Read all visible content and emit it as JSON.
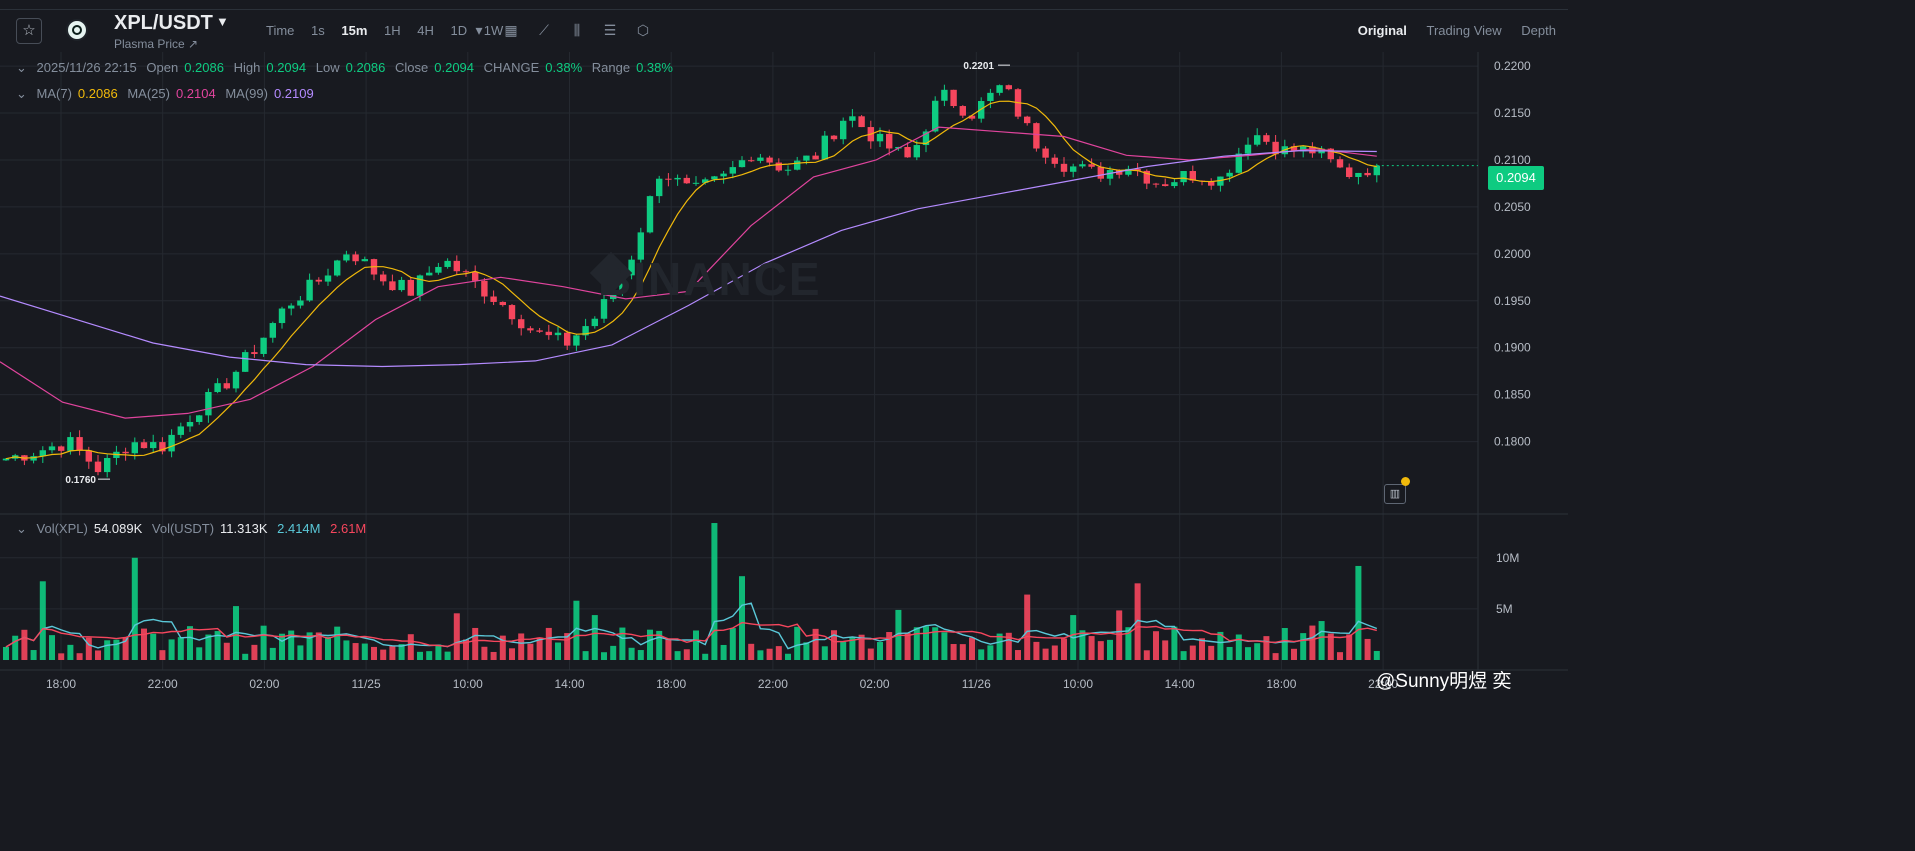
{
  "header": {
    "pair": "XPL/USDT",
    "subtitle": "Plasma Price ↗",
    "intervals": [
      "Time",
      "1s",
      "15m",
      "1H",
      "4H",
      "1D",
      "1W"
    ],
    "active_interval": "15m",
    "views": [
      "Original",
      "Trading View",
      "Depth"
    ],
    "active_view": "Original",
    "icons": [
      "star-icon",
      "dropdown-caret-icon",
      "calendar-icon",
      "draw-line-icon",
      "indicator-icon",
      "settings-list-icon",
      "hexagon-settings-icon"
    ]
  },
  "ohlc_row": {
    "date": "2025/11/26 22:15",
    "open_label": "Open",
    "open": "0.2086",
    "high_label": "High",
    "high": "0.2094",
    "low_label": "Low",
    "low": "0.2086",
    "close_label": "Close",
    "close": "0.2094",
    "change_label": "CHANGE",
    "change": "0.38%",
    "range_label": "Range",
    "range": "0.38%"
  },
  "ma_row": {
    "ma7_label": "MA(7)",
    "ma7": "0.2086",
    "ma25_label": "MA(25)",
    "ma25": "0.2104",
    "ma99_label": "MA(99)",
    "ma99": "0.2109"
  },
  "vol_row": {
    "vol_xpl_label": "Vol(XPL)",
    "vol_xpl": "54.089K",
    "vol_usdt_label": "Vol(USDT)",
    "vol_usdt": "11.313K",
    "ma_a": "2.414M",
    "ma_b": "2.61M"
  },
  "current_price": "0.2094",
  "watermark": "BINANCE",
  "credit": "@Sunny明煜 奕",
  "colors": {
    "up": "#0ecb81",
    "down": "#f6465d",
    "ma7": "#f0b90b",
    "ma25": "#e0449d",
    "ma99": "#b48bff",
    "vol_ma_a": "#5ac8d8",
    "vol_ma_b": "#f6465d"
  },
  "chart_data": {
    "type": "candlestick",
    "price_axis_ticks": [
      "0.2200",
      "0.2150",
      "0.2100",
      "0.2050",
      "0.2000",
      "0.1950",
      "0.1900",
      "0.1850",
      "0.1800"
    ],
    "price_range": [
      0.1725,
      0.2215
    ],
    "volume_axis_ticks": [
      "10M",
      "5M"
    ],
    "volume_range": [
      0,
      13500000
    ],
    "time_ticks": [
      "18:00",
      "22:00",
      "02:00",
      "11/25",
      "10:00",
      "14:00",
      "18:00",
      "22:00",
      "02:00",
      "11/26",
      "10:00",
      "14:00",
      "18:00",
      "22:00"
    ],
    "high_marker": "0.2201",
    "low_marker": "0.1760",
    "ma99_path": [
      0.1955,
      0.193,
      0.1905,
      0.189,
      0.1882,
      0.188,
      0.1882,
      0.1886,
      0.1903,
      0.1945,
      0.199,
      0.2025,
      0.2048,
      0.2063,
      0.2078,
      0.2093,
      0.2104,
      0.211,
      0.2109
    ],
    "ma25_path": [
      0.1885,
      0.1842,
      0.1825,
      0.183,
      0.1845,
      0.188,
      0.193,
      0.1965,
      0.1975,
      0.1965,
      0.1952,
      0.196,
      0.203,
      0.2082,
      0.21,
      0.2135,
      0.213,
      0.2125,
      0.2105,
      0.21,
      0.2105,
      0.2112,
      0.2104
    ],
    "candle_count": 150,
    "start_price": 0.178,
    "end_price": 0.2094
  }
}
